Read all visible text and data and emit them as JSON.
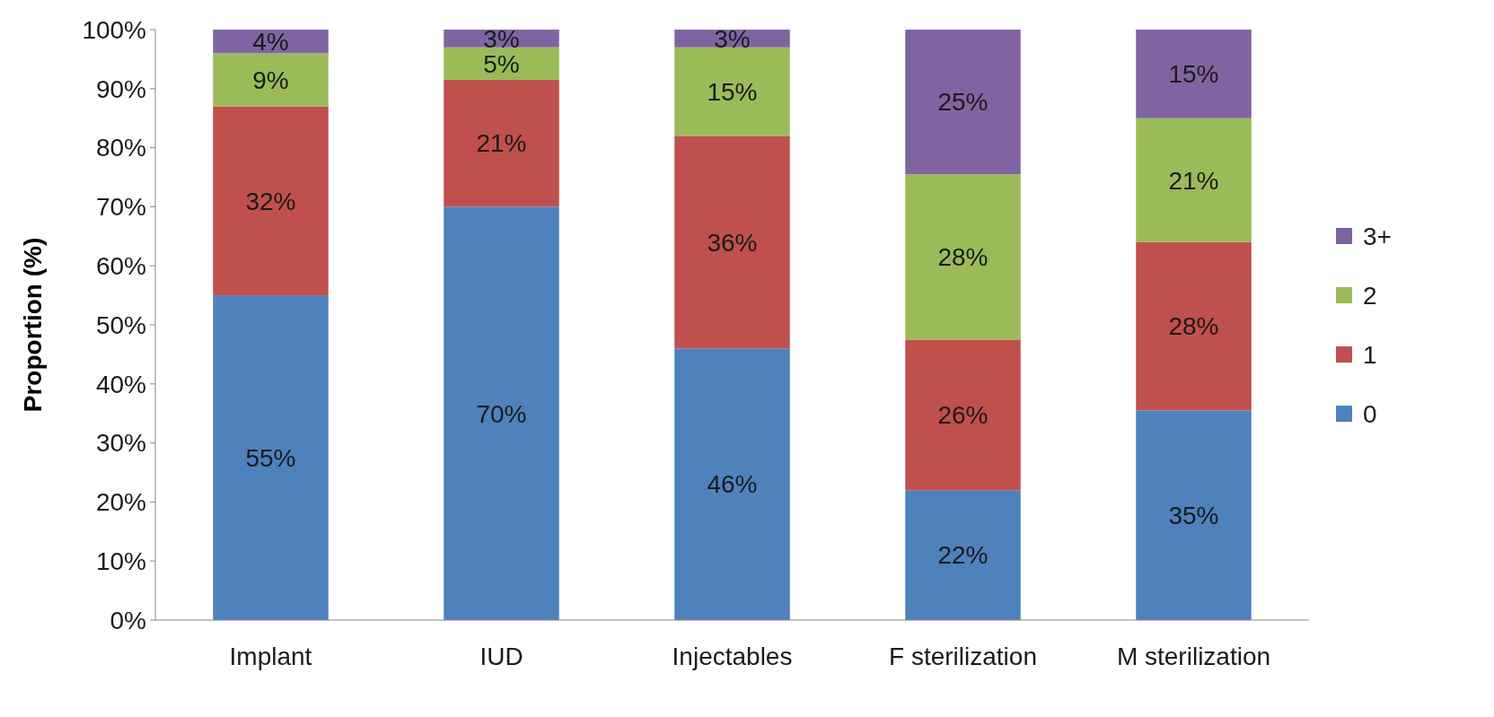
{
  "chart_data": {
    "type": "bar",
    "stacked": true,
    "ylabel": "Proportion  (%)",
    "categories": [
      "Implant",
      "IUD",
      "Injectables",
      "F sterilization",
      "M sterilization"
    ],
    "series": [
      {
        "name": "0",
        "color": "#4f81bd",
        "values": [
          55,
          70,
          46,
          22,
          35.5
        ],
        "value_labels": [
          "55%",
          "70%",
          "46%",
          "22%",
          "35%"
        ]
      },
      {
        "name": "1",
        "color": "#c0504d",
        "values": [
          32,
          21.5,
          36,
          25.5,
          28.5
        ],
        "value_labels": [
          "32%",
          "21%",
          "36%",
          "26%",
          "28%"
        ]
      },
      {
        "name": "2",
        "color": "#9bbb59",
        "values": [
          9,
          5.5,
          15,
          28,
          21
        ],
        "value_labels": [
          "9%",
          "5%",
          "15%",
          "28%",
          "21%"
        ]
      },
      {
        "name": "3+",
        "color": "#8064a2",
        "values": [
          4,
          3,
          3,
          24.5,
          15
        ],
        "value_labels": [
          "4%",
          "3%",
          "3%",
          "25%",
          "15%"
        ]
      }
    ],
    "ylim": [
      0,
      100
    ],
    "yticks": [
      {
        "value": 0,
        "label": "0%"
      },
      {
        "value": 10,
        "label": "10%"
      },
      {
        "value": 20,
        "label": "20%"
      },
      {
        "value": 30,
        "label": "30%"
      },
      {
        "value": 40,
        "label": "40%"
      },
      {
        "value": 50,
        "label": "50%"
      },
      {
        "value": 60,
        "label": "60%"
      },
      {
        "value": 70,
        "label": "70%"
      },
      {
        "value": 80,
        "label": "80%"
      },
      {
        "value": 90,
        "label": "90%"
      },
      {
        "value": 100,
        "label": "100%"
      }
    ],
    "legend": "right",
    "grid": false
  }
}
